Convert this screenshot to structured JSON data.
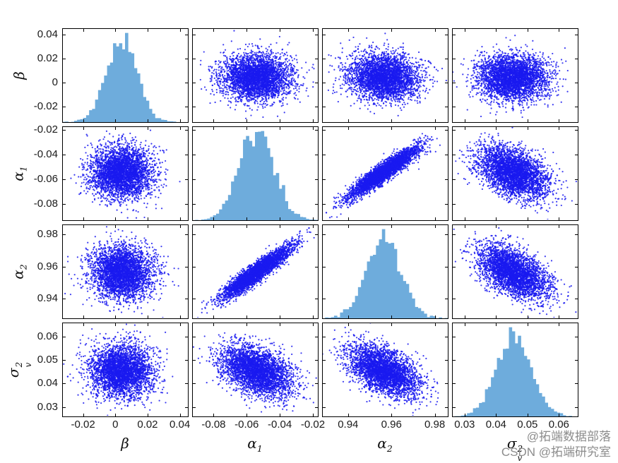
{
  "figure": {
    "background": "#ffffff",
    "axis_color": "#000000",
    "tick_label_color": "#1a1a1a",
    "marker_color": "#1a1af0",
    "hist_fill": "#6eacdc"
  },
  "chart_data": {
    "type": "scatter_matrix",
    "description": "4x4 pairs plot (MCMC posterior draws): scatter clouds off-diagonal, histograms on diagonal",
    "n_points": 3500,
    "hist_samples": 4000,
    "hist_bins": 42,
    "diagonal": "histogram",
    "grid": false,
    "legend": null,
    "variables": [
      {
        "name": "beta",
        "label": {
          "base": "β",
          "sup": "",
          "sub": ""
        },
        "mean": 0.004,
        "sd": 0.0095,
        "lim": [
          -0.033,
          0.045
        ],
        "ticks": [
          -0.02,
          0,
          0.02,
          0.04
        ],
        "tick_labels": [
          "-0.02",
          "0",
          "0.02",
          "0.04"
        ]
      },
      {
        "name": "alpha1",
        "label": {
          "base": "α",
          "sup": "",
          "sub": "1"
        },
        "mean": -0.054,
        "sd": 0.0105,
        "lim": [
          -0.093,
          -0.017
        ],
        "ticks": [
          -0.08,
          -0.06,
          -0.04,
          -0.02
        ],
        "tick_labels": [
          "-0.08",
          "-0.06",
          "-0.04",
          "-0.02"
        ]
      },
      {
        "name": "alpha2",
        "label": {
          "base": "α",
          "sup": "",
          "sub": "2"
        },
        "mean": 0.9565,
        "sd": 0.0082,
        "lim": [
          0.928,
          0.986
        ],
        "ticks": [
          0.94,
          0.96,
          0.98
        ],
        "tick_labels": [
          "0.94",
          "0.96",
          "0.98"
        ]
      },
      {
        "name": "sigma_v2",
        "label": {
          "base": "σ",
          "sup": "2",
          "sub": "v"
        },
        "mean": 0.0455,
        "sd": 0.0055,
        "lim": [
          0.026,
          0.066
        ],
        "ticks": [
          0.03,
          0.04,
          0.05,
          0.06
        ],
        "tick_labels": [
          "0.03",
          "0.04",
          "0.05",
          "0.06"
        ]
      }
    ],
    "correlations": [
      [
        1.0,
        -0.02,
        -0.06,
        -0.02
      ],
      [
        -0.02,
        1.0,
        0.93,
        -0.42
      ],
      [
        -0.06,
        0.93,
        1.0,
        -0.52
      ],
      [
        -0.02,
        -0.42,
        -0.52,
        1.0
      ]
    ]
  },
  "watermark": {
    "line1": "@拓端数据部落",
    "line2": "CSDN @拓端研究室",
    "color": "#8c8c8c"
  }
}
